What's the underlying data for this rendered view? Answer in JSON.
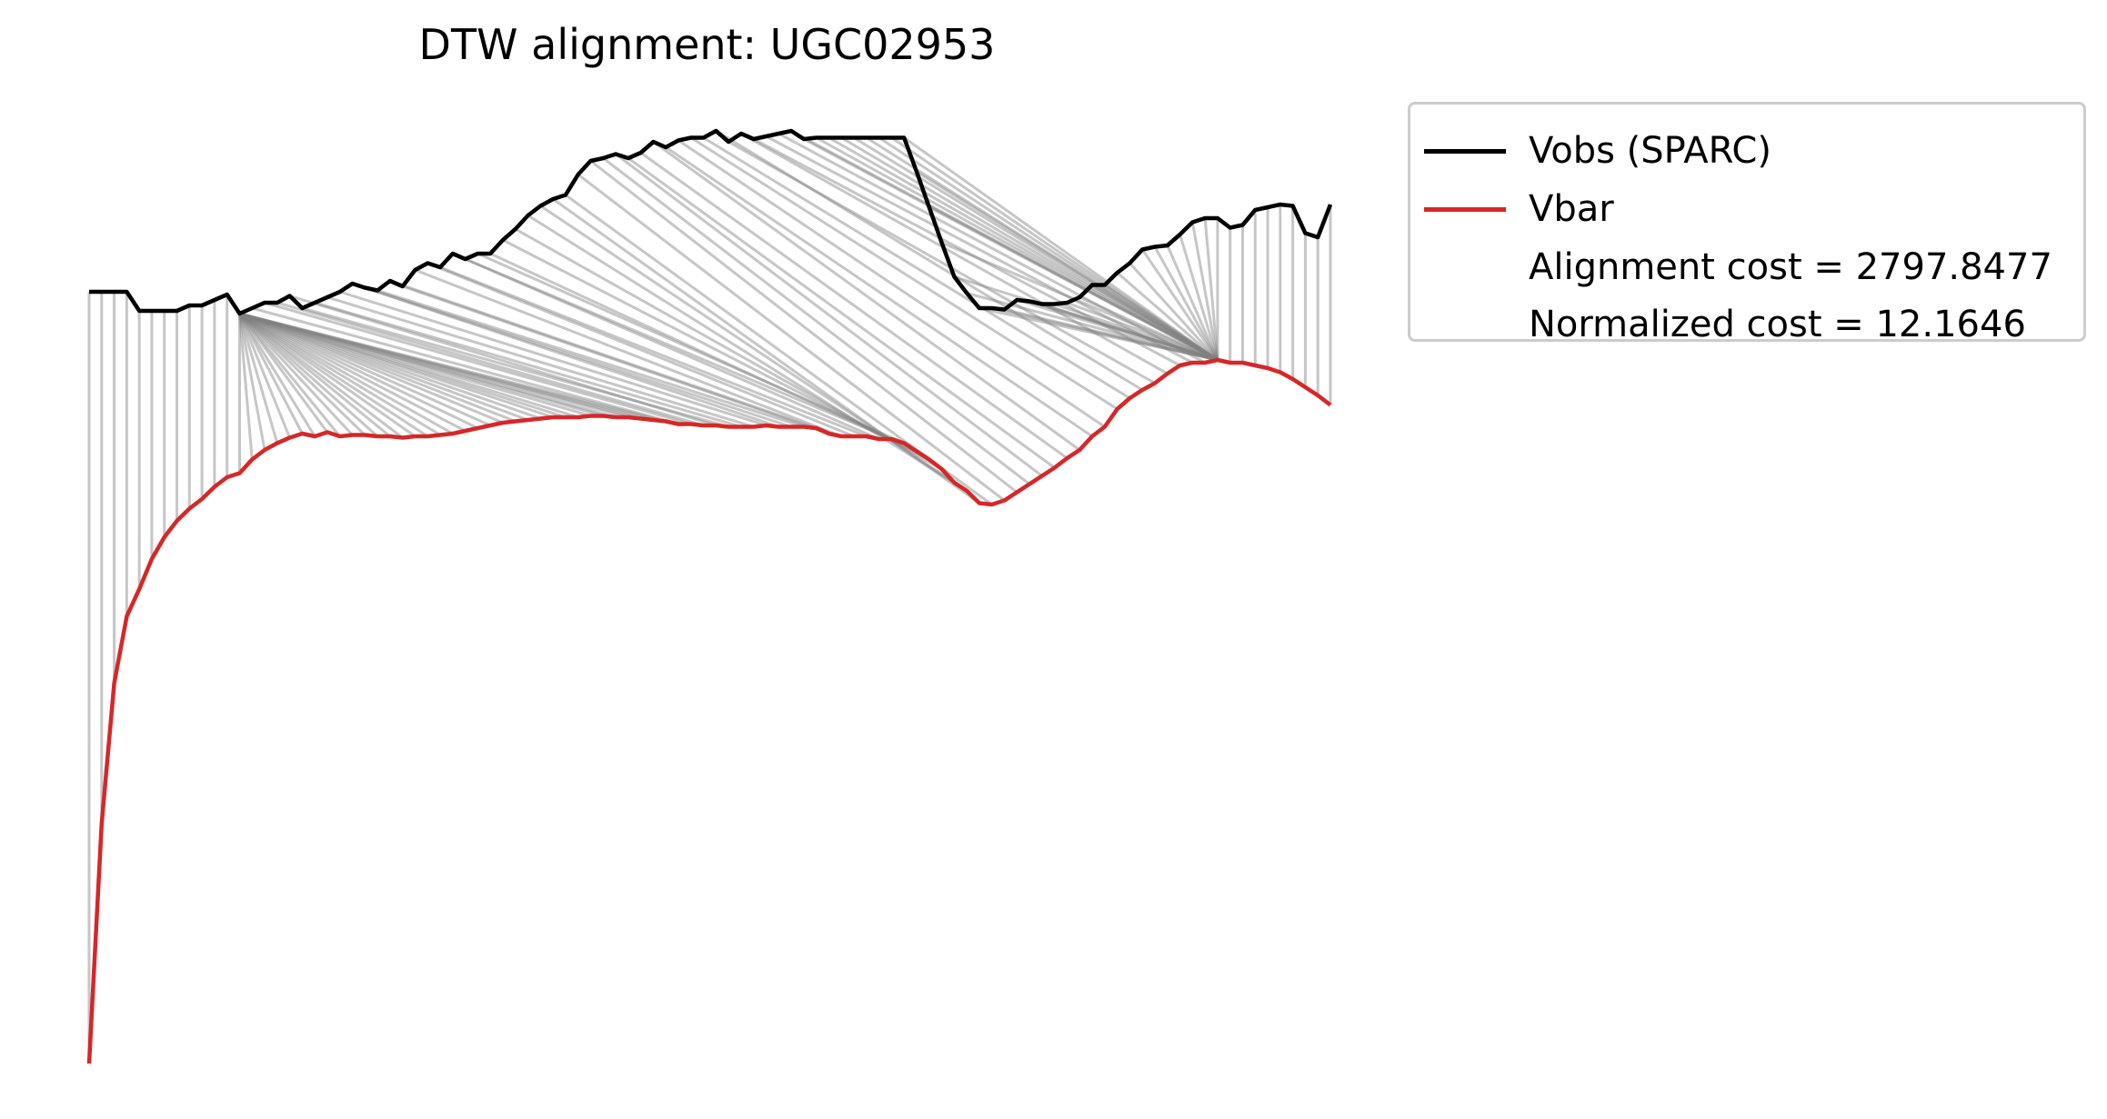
{
  "chart_data": {
    "type": "line",
    "title": "DTW alignment: UGC02953",
    "xlabel": "",
    "ylabel": "",
    "axes_visible": false,
    "grid": false,
    "legend_position": "outside-top-right",
    "series": [
      {
        "name": "Vobs (SPARC)",
        "color": "#000000",
        "y": [
          214,
          214,
          214,
          214,
          228,
          228,
          228,
          228,
          224,
          224,
          220,
          216,
          230,
          226,
          222,
          222,
          217,
          226,
          222,
          218,
          214,
          208,
          211,
          213,
          206,
          210,
          198,
          193,
          196,
          186,
          190,
          186,
          186,
          176,
          168,
          158,
          151,
          146,
          143,
          128,
          118,
          116,
          113,
          116,
          112,
          104,
          108,
          103,
          101,
          101,
          96,
          104,
          98,
          102,
          100,
          98,
          96,
          102,
          101,
          101,
          101,
          101,
          101,
          101,
          101,
          101,
          126,
          152,
          178,
          203,
          215,
          226,
          226,
          227,
          220,
          221,
          223,
          223,
          222,
          218,
          209,
          209,
          200,
          193,
          183,
          181,
          180,
          172,
          163,
          160,
          160,
          167,
          165,
          154,
          152,
          150,
          151,
          171,
          174,
          150
        ]
      },
      {
        "name": "Vbar",
        "color": "#d62728",
        "y": [
          780,
          604,
          501,
          452,
          432,
          410,
          394,
          382,
          373,
          366,
          357,
          350,
          347,
          337,
          330,
          325,
          321,
          318,
          320,
          317,
          320,
          319,
          319,
          320,
          320,
          321,
          320,
          320,
          319,
          318,
          316,
          314,
          312,
          310,
          309,
          308,
          307,
          306,
          306,
          306,
          305,
          305,
          306,
          306,
          307,
          308,
          309,
          311,
          311,
          312,
          312,
          313,
          313,
          313,
          312,
          313,
          313,
          313,
          314,
          318,
          320,
          320,
          320,
          322,
          322,
          325,
          331,
          337,
          344,
          354,
          360,
          369,
          370,
          367,
          361,
          355,
          349,
          343,
          336,
          330,
          320,
          313,
          300,
          292,
          286,
          281,
          274,
          268,
          266,
          266,
          264,
          266,
          266,
          268,
          270,
          273,
          278,
          284,
          290,
          297
        ]
      }
    ],
    "alignment_path": [
      [
        0,
        0
      ],
      [
        1,
        1
      ],
      [
        2,
        2
      ],
      [
        3,
        3
      ],
      [
        4,
        4
      ],
      [
        5,
        5
      ],
      [
        6,
        6
      ],
      [
        7,
        7
      ],
      [
        8,
        8
      ],
      [
        9,
        9
      ],
      [
        10,
        10
      ],
      [
        11,
        11
      ],
      [
        12,
        12
      ],
      [
        12,
        13
      ],
      [
        12,
        14
      ],
      [
        12,
        15
      ],
      [
        12,
        16
      ],
      [
        12,
        17
      ],
      [
        12,
        18
      ],
      [
        12,
        19
      ],
      [
        12,
        20
      ],
      [
        12,
        21
      ],
      [
        12,
        22
      ],
      [
        12,
        23
      ],
      [
        12,
        24
      ],
      [
        12,
        25
      ],
      [
        12,
        26
      ],
      [
        12,
        27
      ],
      [
        12,
        28
      ],
      [
        12,
        29
      ],
      [
        12,
        30
      ],
      [
        12,
        31
      ],
      [
        12,
        32
      ],
      [
        12,
        33
      ],
      [
        12,
        34
      ],
      [
        12,
        35
      ],
      [
        12,
        36
      ],
      [
        12,
        37
      ],
      [
        12,
        38
      ],
      [
        12,
        39
      ],
      [
        12,
        40
      ],
      [
        12,
        41
      ],
      [
        12,
        42
      ],
      [
        12,
        43
      ],
      [
        12,
        44
      ],
      [
        12,
        45
      ],
      [
        12,
        46
      ],
      [
        13,
        47
      ],
      [
        14,
        48
      ],
      [
        15,
        49
      ],
      [
        16,
        50
      ],
      [
        17,
        51
      ],
      [
        18,
        52
      ],
      [
        19,
        53
      ],
      [
        20,
        54
      ],
      [
        21,
        55
      ],
      [
        22,
        56
      ],
      [
        23,
        57
      ],
      [
        24,
        58
      ],
      [
        25,
        59
      ],
      [
        26,
        60
      ],
      [
        27,
        61
      ],
      [
        28,
        62
      ],
      [
        29,
        63
      ],
      [
        30,
        64
      ],
      [
        31,
        65
      ],
      [
        32,
        66
      ],
      [
        33,
        67
      ],
      [
        34,
        68
      ],
      [
        35,
        69
      ],
      [
        36,
        70
      ],
      [
        37,
        71
      ],
      [
        38,
        72
      ],
      [
        39,
        73
      ],
      [
        40,
        74
      ],
      [
        41,
        75
      ],
      [
        42,
        76
      ],
      [
        43,
        77
      ],
      [
        44,
        78
      ],
      [
        45,
        79
      ],
      [
        46,
        80
      ],
      [
        47,
        81
      ],
      [
        48,
        82
      ],
      [
        49,
        83
      ],
      [
        50,
        84
      ],
      [
        51,
        85
      ],
      [
        52,
        86
      ],
      [
        53,
        87
      ],
      [
        54,
        88
      ],
      [
        55,
        89
      ],
      [
        56,
        90
      ],
      [
        57,
        90
      ],
      [
        58,
        90
      ],
      [
        59,
        90
      ],
      [
        60,
        90
      ],
      [
        61,
        90
      ],
      [
        62,
        90
      ],
      [
        63,
        90
      ],
      [
        64,
        90
      ],
      [
        65,
        90
      ],
      [
        66,
        90
      ],
      [
        67,
        90
      ],
      [
        68,
        90
      ],
      [
        69,
        90
      ],
      [
        70,
        90
      ],
      [
        71,
        90
      ],
      [
        72,
        90
      ],
      [
        73,
        90
      ],
      [
        74,
        90
      ],
      [
        75,
        90
      ],
      [
        76,
        90
      ],
      [
        77,
        90
      ],
      [
        78,
        90
      ],
      [
        79,
        90
      ],
      [
        80,
        90
      ],
      [
        81,
        90
      ],
      [
        82,
        90
      ],
      [
        83,
        90
      ],
      [
        84,
        90
      ],
      [
        85,
        90
      ],
      [
        86,
        90
      ],
      [
        87,
        90
      ],
      [
        88,
        90
      ],
      [
        89,
        90
      ],
      [
        90,
        90
      ],
      [
        91,
        91
      ],
      [
        92,
        92
      ],
      [
        93,
        93
      ],
      [
        94,
        94
      ],
      [
        95,
        95
      ],
      [
        96,
        96
      ],
      [
        97,
        97
      ],
      [
        98,
        98
      ],
      [
        99,
        99
      ]
    ],
    "legend": [
      {
        "label": "Vobs (SPARC)",
        "color": "#000000"
      },
      {
        "label": "Vbar",
        "color": "#d62728"
      },
      {
        "label": "Alignment cost = 2797.8477",
        "color": ""
      },
      {
        "label": "Normalized cost = 12.1646",
        "color": ""
      }
    ],
    "connector_color": "#808080"
  }
}
